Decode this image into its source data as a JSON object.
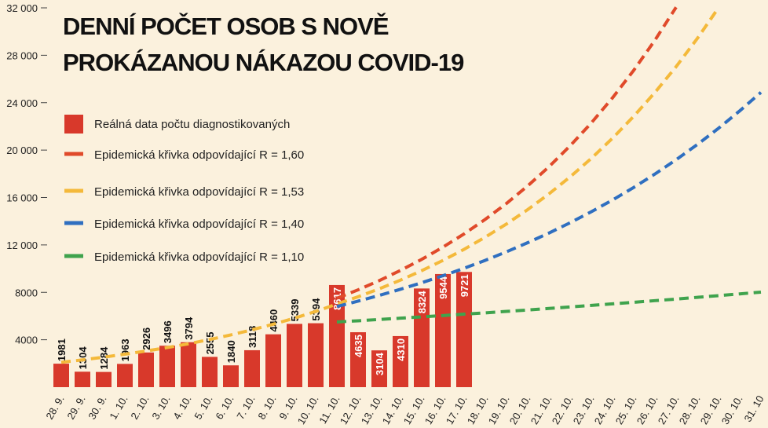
{
  "chart_data": {
    "type": "bar",
    "title": "DENNÍ POČET OSOB S NOVĚ",
    "subtitle": "PROKÁZANOU NÁKAZOU COVID-19",
    "categories": [
      "28. 9.",
      "29. 9.",
      "30. 9.",
      "1. 10.",
      "2. 10.",
      "3. 10.",
      "4. 10.",
      "5. 10.",
      "6. 10.",
      "7. 10.",
      "8. 10.",
      "9. 10.",
      "10. 10.",
      "11. 10.",
      "12. 10.",
      "13. 10.",
      "14. 10.",
      "15. 10.",
      "16. 10.",
      "17. 10.",
      "18. 10.",
      "19. 10.",
      "20. 10.",
      "21. 10.",
      "22. 10.",
      "23. 10.",
      "24. 10.",
      "25. 10.",
      "26. 10.",
      "27. 10.",
      "28. 10.",
      "29. 10.",
      "30. 10.",
      "31. 10"
    ],
    "series": [
      {
        "name": "Reálná data počtu diagnostikovaných",
        "type": "bar",
        "color": "#d8392b",
        "values": [
          1981,
          1304,
          1284,
          1963,
          2926,
          3496,
          3794,
          2555,
          1840,
          3118,
          4460,
          5339,
          5394,
          8617,
          4635,
          3104,
          4310,
          8324,
          9544,
          9721,
          null,
          null,
          null,
          null,
          null,
          null,
          null,
          null,
          null,
          null,
          null,
          null,
          null,
          null
        ]
      },
      {
        "name": "Epidemická křivka odpovídající R = 1,60",
        "type": "line",
        "color": "#e04a2a",
        "values": [
          null,
          null,
          null,
          null,
          null,
          null,
          null,
          null,
          null,
          null,
          null,
          null,
          null,
          7500,
          8210,
          8990,
          9850,
          10780,
          11810,
          12930,
          14160,
          15500,
          16980,
          18590,
          20360,
          22290,
          24410,
          26730,
          29270,
          32050,
          null,
          null,
          null,
          null
        ]
      },
      {
        "name": "Epidemická křivka odpovídající R = 1,53",
        "type": "line",
        "color": "#f4b93a",
        "values": [
          2100,
          2300,
          2530,
          2780,
          3050,
          3340,
          3660,
          4020,
          4410,
          4840,
          5310,
          5820,
          6390,
          7010,
          7630,
          8300,
          9030,
          9830,
          10690,
          11630,
          12660,
          13770,
          14980,
          16300,
          17740,
          19300,
          21000,
          22850,
          24860,
          27040,
          29420,
          32010,
          null,
          null
        ]
      },
      {
        "name": "Epidemická křivka odpovídající R = 1,40",
        "type": "line",
        "color": "#2f6fc0",
        "values": [
          null,
          null,
          null,
          null,
          null,
          null,
          null,
          null,
          null,
          null,
          null,
          null,
          null,
          6800,
          7260,
          7740,
          8260,
          8810,
          9400,
          10030,
          10700,
          11420,
          12190,
          13000,
          13870,
          14800,
          15790,
          16850,
          17980,
          19190,
          20470,
          21840,
          23310,
          24870
        ]
      },
      {
        "name": "Epidemická křivka odpovídající R = 1,10",
        "type": "line",
        "color": "#3fa34d",
        "values": [
          null,
          null,
          null,
          null,
          null,
          null,
          null,
          null,
          null,
          null,
          null,
          null,
          null,
          5500,
          5600,
          5710,
          5820,
          5930,
          6040,
          6160,
          6270,
          6390,
          6510,
          6640,
          6770,
          6900,
          7030,
          7160,
          7300,
          7430,
          7580,
          7720,
          7870,
          8020
        ]
      }
    ],
    "ylim": [
      0,
      32000
    ],
    "yticks": [
      {
        "value": 4000,
        "label": "4000"
      },
      {
        "value": 8000,
        "label": "8000"
      },
      {
        "value": 12000,
        "label": "12 000"
      },
      {
        "value": 16000,
        "label": "16 000"
      },
      {
        "value": 20000,
        "label": "20 000"
      },
      {
        "value": 24000,
        "label": "24 000"
      },
      {
        "value": 28000,
        "label": "28 000"
      },
      {
        "value": 32000,
        "label": "32 000"
      }
    ],
    "grid": false
  }
}
